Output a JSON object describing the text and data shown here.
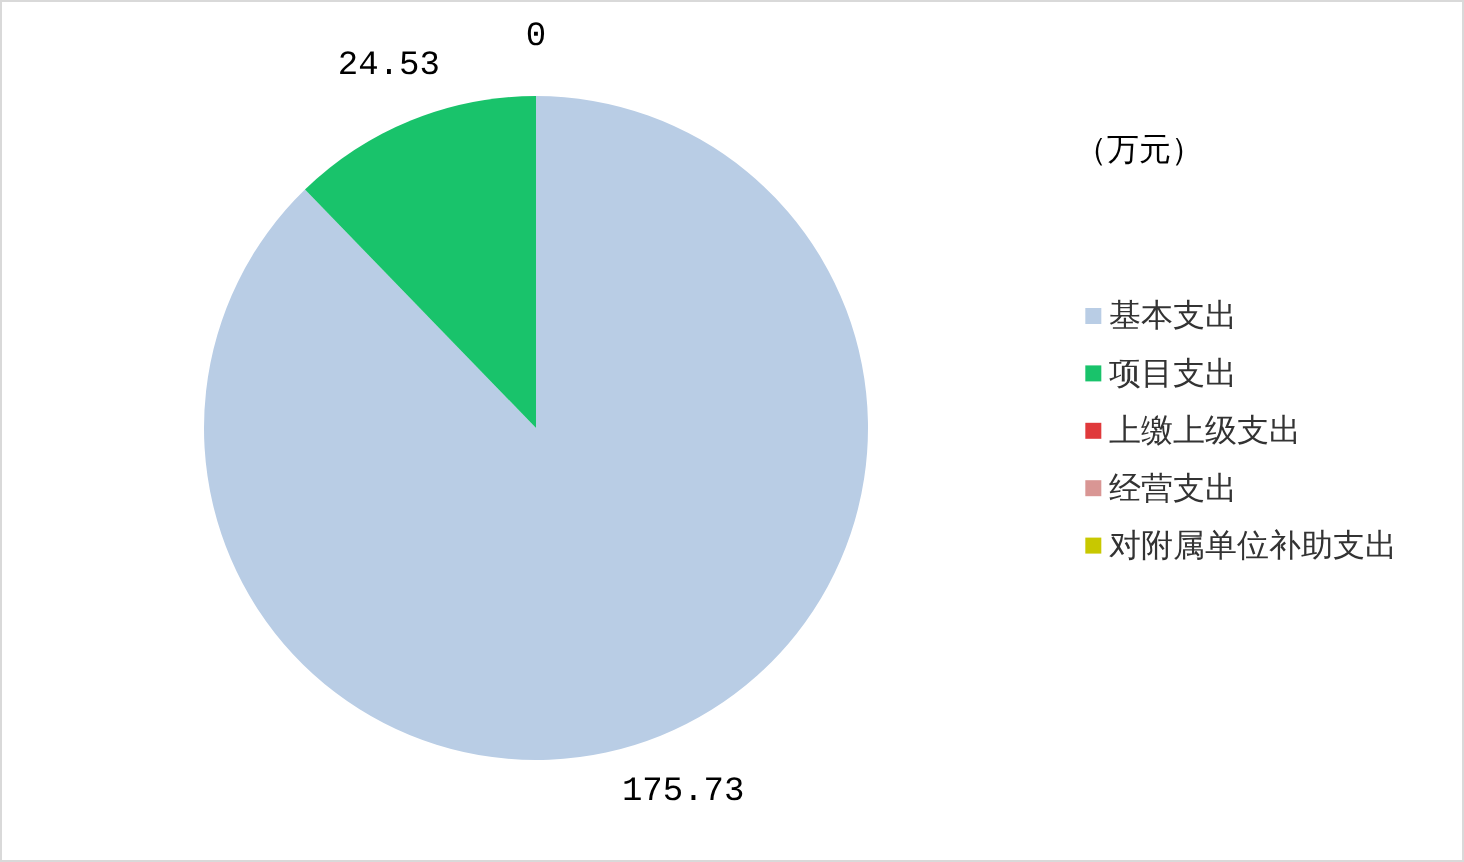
{
  "chart_data": {
    "type": "pie",
    "legend_title": "（万元）",
    "categories": [
      "基本支出",
      "项目支出",
      "上缴上级支出",
      "经营支出",
      "对附属单位补助支出"
    ],
    "values": [
      175.73,
      24.53,
      0,
      0,
      0
    ],
    "colors": [
      "#b9cde5",
      "#19c36b",
      "#e0393b",
      "#d99694",
      "#c8c800"
    ],
    "value_labels": [
      "175.73",
      "24.53",
      "0",
      null,
      null
    ],
    "legend": "right"
  }
}
